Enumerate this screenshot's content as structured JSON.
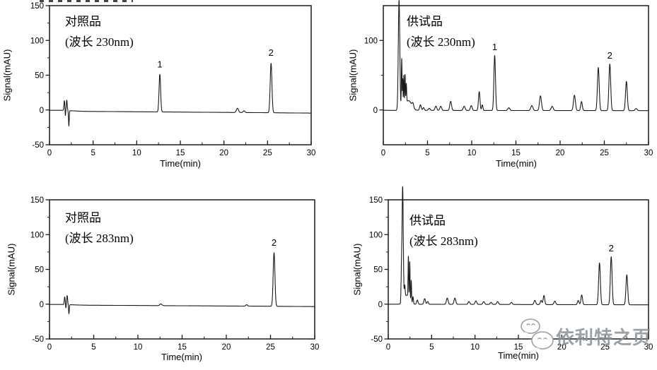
{
  "page": {
    "background": "#ffffff",
    "line_color": "#1a1a1a"
  },
  "watermark": {
    "text": "依利特之页",
    "icon": "wechat-logo-icon",
    "color": "#8f959b"
  },
  "chart_data": [
    {
      "type": "line",
      "position": "top-left",
      "sample_label": "对照品",
      "wavelength_label": "(波长 230nm)",
      "xlabel": "Time(min)",
      "ylabel": "Signal(mAU)",
      "xlim": [
        0,
        30
      ],
      "ylim": [
        -50,
        150
      ],
      "x_major_ticks": [
        0,
        5,
        10,
        15,
        20,
        25,
        30
      ],
      "x_minor_ticks": [
        2.5,
        7.5,
        12.5,
        17.5,
        22.5,
        27.5
      ],
      "y_major_ticks": [
        -50,
        0,
        50,
        100,
        150
      ],
      "y_minor_ticks": [
        -25,
        25,
        75,
        125
      ],
      "grid": false,
      "baseline_points": [
        [
          0,
          -0.5
        ],
        [
          1.4,
          -0.5
        ],
        [
          4,
          -2
        ],
        [
          20,
          -3.5
        ],
        [
          24,
          -3.8
        ],
        [
          30,
          -4.5
        ]
      ],
      "peaks_format": "[time_min, height_mAU, sigma_min]",
      "peaks": [
        [
          1.7,
          14,
          0.05
        ],
        [
          1.82,
          -8,
          0.03
        ],
        [
          1.98,
          15,
          0.05
        ],
        [
          2.22,
          -22,
          0.04
        ],
        [
          12.65,
          54,
          0.09
        ],
        [
          21.55,
          6,
          0.12
        ],
        [
          22.3,
          2.5,
          0.1
        ],
        [
          25.4,
          71,
          0.1
        ]
      ],
      "labeled_peaks": [
        {
          "label": "1",
          "t": 12.65,
          "apex": 54
        },
        {
          "label": "2",
          "t": 25.4,
          "apex": 71
        }
      ]
    },
    {
      "type": "line",
      "position": "top-right",
      "sample_label": "供试品",
      "wavelength_label": "(波长 230nm)",
      "xlabel": "Time(min)",
      "ylabel": "Signal(mAU)",
      "xlim": [
        0,
        30
      ],
      "ylim": [
        -50,
        150
      ],
      "x_major_ticks": [
        0,
        5,
        10,
        15,
        20,
        25,
        30
      ],
      "x_minor_ticks": [
        2.5,
        7.5,
        12.5,
        17.5,
        22.5,
        27.5
      ],
      "y_major_ticks": [
        0,
        100
      ],
      "y_minor_ticks": [
        50
      ],
      "grid": false,
      "baseline_points": [
        [
          0,
          -0.5
        ],
        [
          30,
          -1
        ]
      ],
      "peaks_format": "[time_min, height_mAU, sigma_min]",
      "peaks": [
        [
          1.78,
          158,
          0.085
        ],
        [
          2.08,
          73,
          0.04
        ],
        [
          2.2,
          42,
          0.03
        ],
        [
          2.32,
          46,
          0.035
        ],
        [
          2.46,
          44,
          0.035
        ],
        [
          2.6,
          28,
          0.04
        ],
        [
          2.85,
          14,
          0.35
        ],
        [
          3.35,
          6,
          0.09
        ],
        [
          4.2,
          8,
          0.09
        ],
        [
          4.55,
          4,
          0.08
        ],
        [
          5.2,
          3,
          0.1
        ],
        [
          5.95,
          6,
          0.1
        ],
        [
          6.5,
          6,
          0.1
        ],
        [
          7.62,
          13,
          0.1
        ],
        [
          9.15,
          6,
          0.11
        ],
        [
          9.95,
          7,
          0.1
        ],
        [
          10.85,
          27,
          0.085
        ],
        [
          11.2,
          8,
          0.07
        ],
        [
          12.6,
          79,
          0.09
        ],
        [
          14.2,
          4,
          0.11
        ],
        [
          16.8,
          7,
          0.12
        ],
        [
          17.78,
          21,
          0.11
        ],
        [
          19.1,
          6,
          0.12
        ],
        [
          21.62,
          22,
          0.11
        ],
        [
          22.42,
          13,
          0.09
        ],
        [
          24.32,
          62,
          0.1
        ],
        [
          25.62,
          67,
          0.1
        ],
        [
          27.5,
          42,
          0.1
        ],
        [
          28.6,
          3,
          0.12
        ]
      ],
      "labeled_peaks": [
        {
          "label": "1",
          "t": 12.6,
          "apex": 79
        },
        {
          "label": "2",
          "t": 25.62,
          "apex": 67
        }
      ]
    },
    {
      "type": "line",
      "position": "bottom-left",
      "sample_label": "对照品",
      "wavelength_label": "(波长 283nm)",
      "xlabel": "Time(min)",
      "ylabel": "Signal(mAU)",
      "xlim": [
        0,
        30
      ],
      "ylim": [
        -50,
        150
      ],
      "x_major_ticks": [
        0,
        5,
        10,
        15,
        20,
        25,
        30
      ],
      "x_minor_ticks": [
        2.5,
        7.5,
        12.5,
        17.5,
        22.5,
        27.5
      ],
      "y_major_ticks": [
        -50,
        0,
        50,
        100,
        150
      ],
      "y_minor_ticks": [
        -25,
        25,
        75,
        125
      ],
      "grid": false,
      "baseline_points": [
        [
          0,
          -0.5
        ],
        [
          1.5,
          -0.5
        ],
        [
          4,
          -1.5
        ],
        [
          25,
          -3
        ],
        [
          30,
          -3.5
        ]
      ],
      "peaks_format": "[time_min, height_mAU, sigma_min]",
      "peaks": [
        [
          1.72,
          11,
          0.05
        ],
        [
          1.85,
          -5,
          0.03
        ],
        [
          2.0,
          13,
          0.05
        ],
        [
          2.2,
          -13,
          0.04
        ],
        [
          12.6,
          2.5,
          0.12
        ],
        [
          22.3,
          2,
          0.1
        ],
        [
          25.4,
          77,
          0.1
        ]
      ],
      "labeled_peaks": [
        {
          "label": "2",
          "t": 25.4,
          "apex": 77
        }
      ]
    },
    {
      "type": "line",
      "position": "bottom-right",
      "sample_label": "供试品",
      "wavelength_label": "(波长 283nm)",
      "xlabel": "Time(min)",
      "ylabel": "Signal(mAU)",
      "xlim": [
        0,
        30
      ],
      "ylim": [
        -50,
        150
      ],
      "x_major_ticks": [
        0,
        5,
        10,
        15,
        20,
        25,
        30
      ],
      "x_minor_ticks": [
        2.5,
        7.5,
        12.5,
        17.5,
        22.5,
        27.5
      ],
      "y_major_ticks": [
        -50,
        0,
        50,
        100,
        150
      ],
      "y_minor_ticks": [
        -25,
        25,
        75,
        125
      ],
      "grid": false,
      "baseline_points": [
        [
          0,
          0
        ],
        [
          30,
          -1
        ]
      ],
      "peaks_format": "[time_min, height_mAU, sigma_min]",
      "peaks": [
        [
          1.52,
          38,
          0.05
        ],
        [
          1.66,
          165,
          0.07
        ],
        [
          1.9,
          18,
          0.05
        ],
        [
          2.15,
          13,
          0.3
        ],
        [
          2.32,
          58,
          0.035
        ],
        [
          2.48,
          54,
          0.035
        ],
        [
          2.65,
          31,
          0.035
        ],
        [
          2.85,
          10,
          0.05
        ],
        [
          3.35,
          6,
          0.08
        ],
        [
          4.2,
          8,
          0.09
        ],
        [
          4.55,
          4,
          0.08
        ],
        [
          6.8,
          9,
          0.1
        ],
        [
          7.68,
          9,
          0.1
        ],
        [
          9.3,
          4,
          0.1
        ],
        [
          10.1,
          5,
          0.1
        ],
        [
          11.0,
          4,
          0.1
        ],
        [
          11.85,
          3,
          0.1
        ],
        [
          12.6,
          4,
          0.1
        ],
        [
          14.2,
          3,
          0.1
        ],
        [
          16.9,
          6,
          0.1
        ],
        [
          17.62,
          6,
          0.09
        ],
        [
          17.95,
          13,
          0.09
        ],
        [
          19.2,
          5,
          0.1
        ],
        [
          21.9,
          6,
          0.09
        ],
        [
          22.3,
          14,
          0.09
        ],
        [
          24.35,
          60,
          0.1
        ],
        [
          25.7,
          69,
          0.1
        ],
        [
          27.5,
          43,
          0.1
        ]
      ],
      "labeled_peaks": [
        {
          "label": "2",
          "t": 25.7,
          "apex": 69
        }
      ]
    }
  ]
}
